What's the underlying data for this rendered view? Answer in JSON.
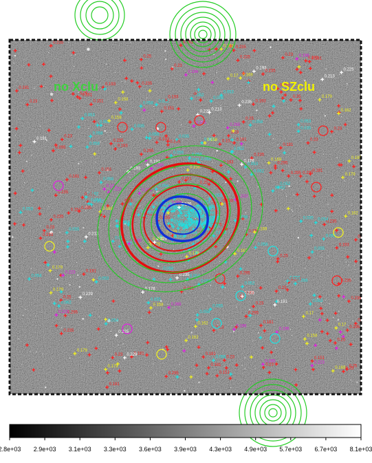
{
  "image": {
    "labels": {
      "no_xclu": "no Xclu",
      "no_szclu": "no SZclu"
    },
    "label_colors": {
      "no_xclu": "#3fd23f",
      "no_szclu": "#f2f200"
    }
  },
  "colorbar": {
    "ticks": [
      "2.8e+03",
      "2.9e+03",
      "3.1e+03",
      "3.3e+03",
      "3.6e+03",
      "3.9e+03",
      "4.3e+03",
      "4.9e+03",
      "5.7e+03",
      "6.7e+03",
      "8.1e+03"
    ]
  },
  "sample_values": {
    "red": [
      "0.295",
      "0.151",
      "0.235",
      "0.25",
      "0.23",
      "0.181",
      "0.193"
    ],
    "white": [
      "0.235",
      "0.176",
      "0.213",
      "0.191",
      "0.225",
      "0.229",
      "0.193"
    ],
    "yellow": [
      "0.179",
      "0.162",
      "0.158",
      "0.17",
      "0.169"
    ],
    "cyan": [
      "0.053",
      "0.056",
      "0.062",
      "0.035",
      "0.052",
      "0.054",
      "0.058",
      "0.055"
    ],
    "magenta": [
      "0.265",
      "0.223",
      "0.196"
    ]
  },
  "colors": {
    "contour_green": "#22cc22",
    "contour_red": "#e31010",
    "contour_blue": "#1030d8",
    "marker_red": "#ff2020",
    "marker_cyan": "#20e0e0",
    "marker_yellow": "#f0f020",
    "marker_magenta": "#e020e0",
    "marker_white": "#ffffff"
  }
}
